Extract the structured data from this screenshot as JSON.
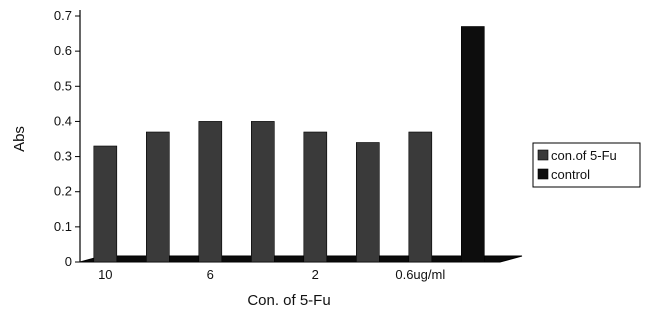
{
  "chart_data": {
    "type": "bar",
    "xlabel": "Con. of 5-Fu",
    "ylabel": "Abs",
    "ylim": [
      0,
      0.7
    ],
    "yticks": [
      "0",
      "0.1",
      "0.2",
      "0.3",
      "0.4",
      "0.5",
      "0.6",
      "0.7"
    ],
    "categories": [
      "10",
      "",
      "6",
      "",
      "2",
      "",
      "0.6ug/ml",
      ""
    ],
    "series": [
      {
        "name": "con.of 5-Fu",
        "color": "#3a3a3a",
        "values": [
          0.33,
          0.37,
          0.4,
          0.4,
          0.37,
          0.34,
          0.37,
          null
        ]
      },
      {
        "name": "control",
        "color": "#0d0d0d",
        "values": [
          null,
          null,
          null,
          null,
          null,
          null,
          null,
          0.67
        ]
      }
    ],
    "grid": false,
    "legend_position": "right"
  }
}
